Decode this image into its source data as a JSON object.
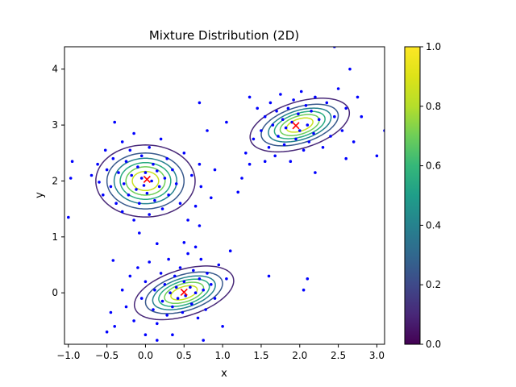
{
  "chart_data": {
    "type": "scatter",
    "title": "Mixture Distribution (2D)",
    "xlabel": "x",
    "ylabel": "y",
    "xlim": [
      -1.05,
      3.1
    ],
    "ylim": [
      -0.92,
      4.4
    ],
    "xticks": [
      -1.0,
      -0.5,
      0.0,
      0.5,
      1.0,
      1.5,
      2.0,
      2.5,
      3.0
    ],
    "xtick_labels": [
      "−1.0",
      "−0.5",
      "0.0",
      "0.5",
      "1.0",
      "1.5",
      "2.0",
      "2.5",
      "3.0"
    ],
    "yticks": [
      0,
      1,
      2,
      3,
      4
    ],
    "ytick_labels": [
      "0",
      "1",
      "2",
      "3",
      "4"
    ],
    "grid": false,
    "point_color": "#0000ff",
    "center_marker_color": "#ff0000",
    "colormap": "viridis",
    "colorbar": {
      "range": [
        0.0,
        1.0
      ],
      "ticks": [
        0.0,
        0.2,
        0.4,
        0.6,
        0.8,
        1.0
      ],
      "tick_labels": [
        "0.0",
        "0.2",
        "0.4",
        "0.6",
        "0.8",
        "1.0"
      ]
    },
    "contour_levels": [
      0.1,
      0.25,
      0.4,
      0.55,
      0.7,
      0.85
    ],
    "components": [
      {
        "mean": [
          0.0,
          2.0
        ],
        "cov": [
          [
            0.09,
            0.0
          ],
          [
            0.0,
            0.09
          ]
        ],
        "weight": 1.0
      },
      {
        "mean": [
          0.5,
          0.0
        ],
        "cov": [
          [
            0.09,
            0.03
          ],
          [
            0.03,
            0.05
          ]
        ],
        "weight": 1.0
      },
      {
        "mean": [
          2.0,
          3.0
        ],
        "cov": [
          [
            0.09,
            0.03
          ],
          [
            0.03,
            0.05
          ]
        ],
        "weight": 1.0
      }
    ],
    "centers": [
      {
        "x": 0.02,
        "y": 2.03
      },
      {
        "x": 0.5,
        "y": 0.01
      },
      {
        "x": 1.95,
        "y": 2.99
      }
    ],
    "points": [
      [
        -0.95,
        2.35
      ],
      [
        -0.97,
        2.05
      ],
      [
        -0.7,
        2.1
      ],
      [
        -0.62,
        2.3
      ],
      [
        -0.6,
        1.98
      ],
      [
        -0.55,
        1.75
      ],
      [
        -0.52,
        2.55
      ],
      [
        -0.5,
        2.2
      ],
      [
        -0.45,
        1.9
      ],
      [
        -0.42,
        2.4
      ],
      [
        -0.4,
        3.05
      ],
      [
        -0.38,
        1.6
      ],
      [
        -0.35,
        2.15
      ],
      [
        -0.3,
        2.7
      ],
      [
        -0.3,
        1.45
      ],
      [
        -0.28,
        1.95
      ],
      [
        -0.25,
        2.35
      ],
      [
        -0.22,
        1.75
      ],
      [
        -0.2,
        2.55
      ],
      [
        -0.18,
        2.1
      ],
      [
        -0.15,
        1.3
      ],
      [
        -0.15,
        2.85
      ],
      [
        -0.12,
        1.85
      ],
      [
        -0.1,
        2.25
      ],
      [
        -0.08,
        1.6
      ],
      [
        -0.05,
        2.05
      ],
      [
        -0.05,
        2.45
      ],
      [
        -0.02,
        1.92
      ],
      [
        0.0,
        2.15
      ],
      [
        0.02,
        1.78
      ],
      [
        0.05,
        2.6
      ],
      [
        0.05,
        1.4
      ],
      [
        0.08,
        2.0
      ],
      [
        0.1,
        2.3
      ],
      [
        0.12,
        1.65
      ],
      [
        0.15,
        2.18
      ],
      [
        0.18,
        1.9
      ],
      [
        0.2,
        2.75
      ],
      [
        0.22,
        1.5
      ],
      [
        0.25,
        2.05
      ],
      [
        0.28,
        2.4
      ],
      [
        0.3,
        1.75
      ],
      [
        0.35,
        2.2
      ],
      [
        0.4,
        1.95
      ],
      [
        0.45,
        1.6
      ],
      [
        0.5,
        2.5
      ],
      [
        0.55,
        1.3
      ],
      [
        0.6,
        2.1
      ],
      [
        0.65,
        1.55
      ],
      [
        0.7,
        2.3
      ],
      [
        0.72,
        1.9
      ],
      [
        0.8,
        2.9
      ],
      [
        0.85,
        1.7
      ],
      [
        0.9,
        2.2
      ],
      [
        0.7,
        3.4
      ],
      [
        1.2,
        1.8
      ],
      [
        -0.08,
        1.07
      ],
      [
        0.15,
        0.88
      ],
      [
        -1.0,
        1.35
      ],
      [
        0.7,
        1.2
      ],
      [
        -0.5,
        -0.7
      ],
      [
        -0.45,
        -0.35
      ],
      [
        -0.42,
        0.58
      ],
      [
        -0.4,
        -0.6
      ],
      [
        -0.3,
        0.05
      ],
      [
        -0.25,
        -0.25
      ],
      [
        -0.2,
        0.3
      ],
      [
        -0.15,
        -0.5
      ],
      [
        -0.1,
        0.45
      ],
      [
        -0.05,
        -0.1
      ],
      [
        0.0,
        0.2
      ],
      [
        0.0,
        -0.75
      ],
      [
        0.05,
        0.55
      ],
      [
        0.1,
        -0.3
      ],
      [
        0.12,
        0.05
      ],
      [
        0.15,
        -0.55
      ],
      [
        0.2,
        0.35
      ],
      [
        0.22,
        -0.15
      ],
      [
        0.25,
        0.15
      ],
      [
        0.28,
        -0.4
      ],
      [
        0.3,
        0.6
      ],
      [
        0.32,
        0.0
      ],
      [
        0.35,
        -0.25
      ],
      [
        0.38,
        0.3
      ],
      [
        0.4,
        0.1
      ],
      [
        0.42,
        -0.1
      ],
      [
        0.45,
        0.45
      ],
      [
        0.48,
        -0.35
      ],
      [
        0.5,
        0.2
      ],
      [
        0.52,
        -0.05
      ],
      [
        0.55,
        0.7
      ],
      [
        0.58,
        0.1
      ],
      [
        0.6,
        -0.2
      ],
      [
        0.62,
        0.4
      ],
      [
        0.65,
        0.0
      ],
      [
        0.68,
        -0.45
      ],
      [
        0.7,
        0.25
      ],
      [
        0.72,
        0.6
      ],
      [
        0.75,
        0.05
      ],
      [
        0.78,
        -0.3
      ],
      [
        0.8,
        0.35
      ],
      [
        0.85,
        0.15
      ],
      [
        0.9,
        -0.1
      ],
      [
        0.95,
        0.5
      ],
      [
        1.0,
        -0.6
      ],
      [
        1.05,
        0.25
      ],
      [
        1.1,
        0.75
      ],
      [
        0.65,
        0.82
      ],
      [
        0.5,
        0.9
      ],
      [
        0.35,
        -0.75
      ],
      [
        1.6,
        0.3
      ],
      [
        2.1,
        0.25
      ],
      [
        2.05,
        0.05
      ],
      [
        0.75,
        -0.85
      ],
      [
        0.15,
        -0.85
      ],
      [
        1.05,
        3.05
      ],
      [
        1.25,
        2.05
      ],
      [
        1.3,
        2.5
      ],
      [
        1.35,
        3.5
      ],
      [
        1.4,
        2.75
      ],
      [
        1.45,
        3.3
      ],
      [
        1.5,
        2.9
      ],
      [
        1.55,
        3.15
      ],
      [
        1.6,
        2.6
      ],
      [
        1.62,
        3.4
      ],
      [
        1.65,
        3.0
      ],
      [
        1.68,
        2.45
      ],
      [
        1.7,
        3.25
      ],
      [
        1.72,
        2.8
      ],
      [
        1.75,
        3.55
      ],
      [
        1.78,
        3.1
      ],
      [
        1.8,
        2.65
      ],
      [
        1.82,
        2.95
      ],
      [
        1.85,
        3.3
      ],
      [
        1.88,
        2.35
      ],
      [
        1.9,
        3.05
      ],
      [
        1.92,
        3.45
      ],
      [
        1.95,
        2.75
      ],
      [
        1.98,
        3.2
      ],
      [
        2.0,
        2.9
      ],
      [
        2.02,
        3.6
      ],
      [
        2.05,
        2.55
      ],
      [
        2.08,
        3.35
      ],
      [
        2.1,
        3.0
      ],
      [
        2.12,
        2.7
      ],
      [
        2.15,
        3.25
      ],
      [
        2.18,
        2.85
      ],
      [
        2.2,
        3.5
      ],
      [
        2.25,
        3.1
      ],
      [
        2.3,
        2.6
      ],
      [
        2.35,
        3.4
      ],
      [
        2.4,
        2.8
      ],
      [
        2.45,
        3.15
      ],
      [
        2.5,
        3.65
      ],
      [
        2.55,
        2.9
      ],
      [
        2.6,
        3.3
      ],
      [
        2.65,
        4.0
      ],
      [
        2.7,
        2.7
      ],
      [
        2.75,
        3.5
      ],
      [
        2.8,
        3.15
      ],
      [
        3.0,
        2.45
      ],
      [
        3.1,
        2.9
      ],
      [
        2.45,
        4.4
      ],
      [
        1.35,
        2.3
      ],
      [
        1.55,
        2.35
      ],
      [
        2.2,
        2.15
      ],
      [
        2.6,
        2.4
      ]
    ]
  }
}
